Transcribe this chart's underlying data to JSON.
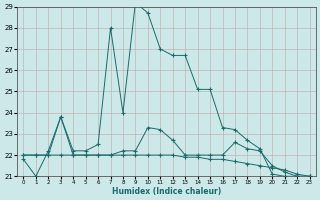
{
  "xlabel": "Humidex (Indice chaleur)",
  "background_color": "#cce8e8",
  "line_color": "#1a6b6b",
  "series1": [
    21.8,
    21.0,
    22.2,
    23.8,
    22.2,
    22.2,
    22.5,
    28.0,
    24.0,
    29.2,
    28.7,
    27.0,
    26.7,
    26.7,
    25.1,
    25.1,
    23.3,
    23.2,
    22.7,
    22.3,
    21.1,
    21.0,
    21.0,
    21.0
  ],
  "series2": [
    22.0,
    22.0,
    22.0,
    23.8,
    22.0,
    22.0,
    22.0,
    22.0,
    22.2,
    22.2,
    23.3,
    23.2,
    22.7,
    22.0,
    22.0,
    22.0,
    22.0,
    22.6,
    22.3,
    22.2,
    21.5,
    21.2,
    21.0,
    21.0
  ],
  "series3": [
    22.0,
    22.0,
    22.0,
    22.0,
    22.0,
    22.0,
    22.0,
    22.0,
    22.0,
    22.0,
    22.0,
    22.0,
    22.0,
    21.9,
    21.9,
    21.8,
    21.8,
    21.7,
    21.6,
    21.5,
    21.4,
    21.3,
    21.1,
    21.0
  ],
  "ylim": [
    21,
    29
  ],
  "xlim": [
    -0.5,
    23.5
  ],
  "yticks": [
    21,
    22,
    23,
    24,
    25,
    26,
    27,
    28,
    29
  ],
  "xticks": [
    0,
    1,
    2,
    3,
    4,
    5,
    6,
    7,
    8,
    9,
    10,
    11,
    12,
    13,
    14,
    15,
    16,
    17,
    18,
    19,
    20,
    21,
    22,
    23
  ]
}
